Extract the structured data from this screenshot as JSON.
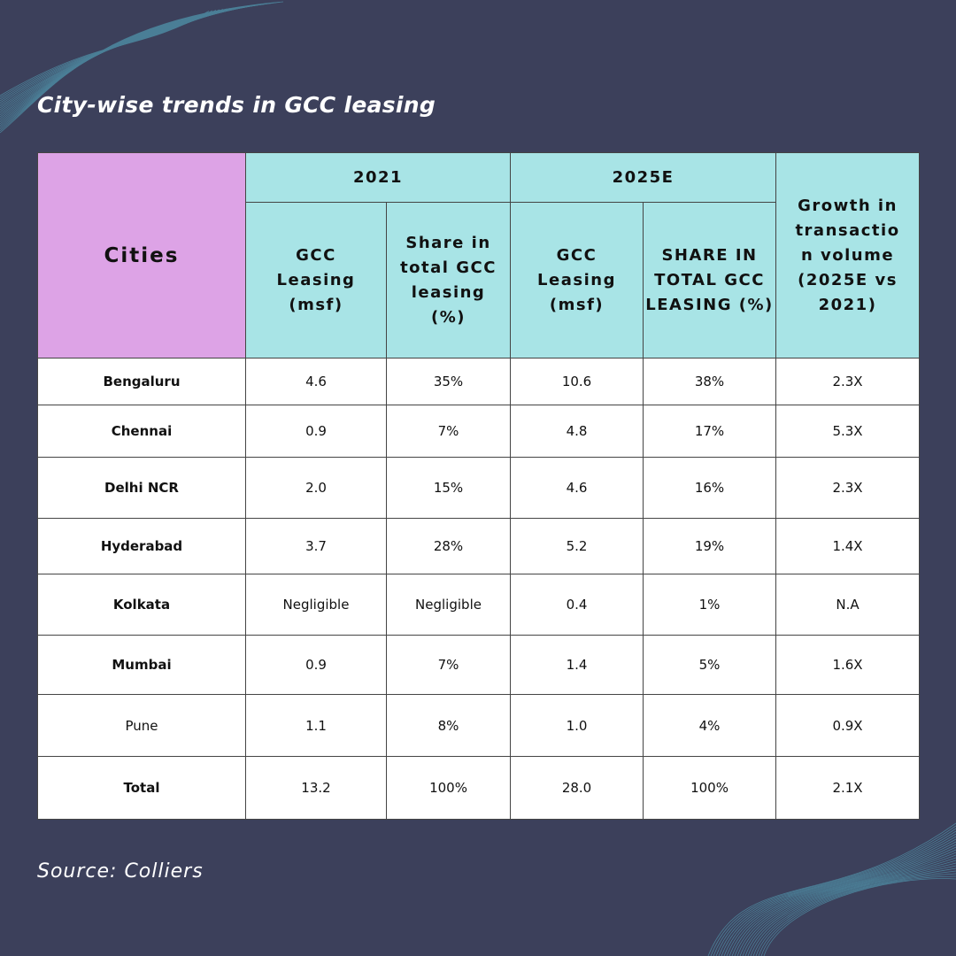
{
  "title": "City-wise trends in GCC leasing",
  "source": "Source: Colliers",
  "colors": {
    "background": "#3c405b",
    "cities_header": "#dda3e6",
    "header": "#a8e4e6"
  },
  "table": {
    "cities_header": "Cities",
    "group_2021": "2021",
    "group_2025": "2025E",
    "growth_header": "Growth in transactio n volume (2025E vs 2021)",
    "sub_headers": [
      "GCC Leasing (msf)",
      "Share in total GCC leasing (%)",
      "GCC Leasing (msf)",
      "SHARE IN TOTAL GCC LEASING (%)"
    ],
    "rows": [
      [
        "Bengaluru",
        "4.6",
        "35%",
        "10.6",
        "38%",
        "2.3X"
      ],
      [
        "Chennai",
        "0.9",
        "7%",
        "4.8",
        "17%",
        "5.3X"
      ],
      [
        "Delhi NCR",
        "2.0",
        "15%",
        "4.6",
        "16%",
        "2.3X"
      ],
      [
        "Hyderabad",
        "3.7",
        "28%",
        "5.2",
        "19%",
        "1.4X"
      ],
      [
        "Kolkata",
        "Negligible",
        "Negligible",
        "0.4",
        "1%",
        "N.A"
      ],
      [
        "Mumbai",
        "0.9",
        "7%",
        "1.4",
        "5%",
        "1.6X"
      ],
      [
        "Pune",
        "1.1",
        "8%",
        "1.0",
        "4%",
        "0.9X"
      ],
      [
        "Total",
        "13.2",
        "100%",
        "28.0",
        "100%",
        "2.1X"
      ]
    ]
  }
}
